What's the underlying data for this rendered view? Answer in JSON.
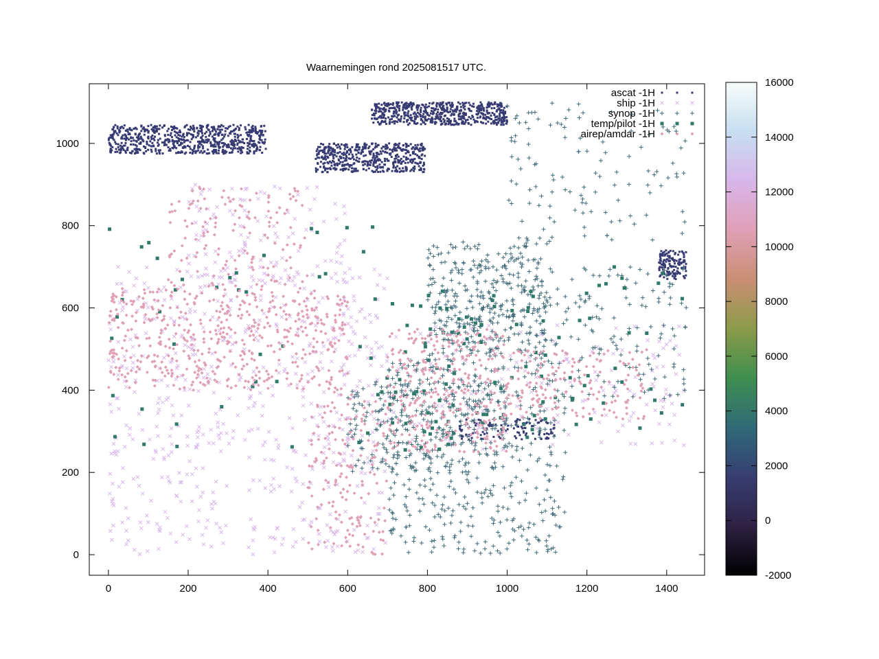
{
  "chart_data": {
    "type": "scatter",
    "title": "Waarnemingen rond 2025081517 UTC.",
    "xlabel": "",
    "ylabel": "",
    "xlim": [
      -48,
      1495
    ],
    "ylim": [
      -50,
      1145
    ],
    "xticks": [
      0,
      200,
      400,
      600,
      800,
      1000,
      1200,
      1400
    ],
    "yticks": [
      0,
      200,
      400,
      600,
      800,
      1000
    ],
    "grid": false,
    "legend_position": "top-right",
    "colorbar": {
      "min": -2000,
      "max": 16000,
      "ticks": [
        -2000,
        0,
        2000,
        4000,
        6000,
        8000,
        10000,
        12000,
        14000,
        16000
      ],
      "stops": [
        "#000000",
        "#2e2244",
        "#383e72",
        "#2f6a78",
        "#3f8f4f",
        "#8c9a49",
        "#c98f73",
        "#df9fb5",
        "#d8b6ea",
        "#c7def1",
        "#f7fdf9"
      ]
    },
    "series": [
      {
        "name": "ascat -1H",
        "marker": "dot",
        "color": "#363a72",
        "regions": [
          {
            "x": [
              0,
              395
            ],
            "y": [
              975,
              1045
            ],
            "n": 700
          },
          {
            "x": [
              520,
              795
            ],
            "y": [
              930,
              1000
            ],
            "n": 500
          },
          {
            "x": [
              660,
              1000
            ],
            "y": [
              1045,
              1100
            ],
            "n": 600
          },
          {
            "x": [
              1380,
              1450
            ],
            "y": [
              670,
              740
            ],
            "n": 140
          },
          {
            "x": [
              880,
              1120
            ],
            "y": [
              280,
              330
            ],
            "n": 120
          }
        ]
      },
      {
        "name": "ship -1H",
        "marker": "x",
        "color": "#d8b6ea",
        "regions": [
          {
            "x": [
              0,
              700
            ],
            "y": [
              250,
              700
            ],
            "n": 420
          },
          {
            "x": [
              0,
              300
            ],
            "y": [
              0,
              250
            ],
            "n": 90
          },
          {
            "x": [
              350,
              700
            ],
            "y": [
              0,
              250
            ],
            "n": 110
          },
          {
            "x": [
              200,
              600
            ],
            "y": [
              650,
              900
            ],
            "n": 120
          },
          {
            "x": [
              700,
              1450
            ],
            "y": [
              250,
              560
            ],
            "n": 160
          }
        ]
      },
      {
        "name": "synop -1H",
        "marker": "plus",
        "color": "#3f6a78",
        "regions": [
          {
            "x": [
              700,
              1150
            ],
            "y": [
              0,
              480
            ],
            "n": 420
          },
          {
            "x": [
              800,
              1100
            ],
            "y": [
              480,
              760
            ],
            "n": 380
          },
          {
            "x": [
              600,
              1000
            ],
            "y": [
              200,
              420
            ],
            "n": 260
          },
          {
            "x": [
              1100,
              1450
            ],
            "y": [
              380,
              700
            ],
            "n": 140
          },
          {
            "x": [
              1000,
              1450
            ],
            "y": [
              760,
              1100
            ],
            "n": 120
          }
        ]
      },
      {
        "name": "temp/pilot -1H",
        "marker": "square",
        "color": "#2f7a6a",
        "regions": [
          {
            "x": [
              650,
              1100
            ],
            "y": [
              250,
              650
            ],
            "n": 90
          },
          {
            "x": [
              0,
              700
            ],
            "y": [
              250,
              800
            ],
            "n": 40
          },
          {
            "x": [
              1100,
              1450
            ],
            "y": [
              300,
              700
            ],
            "n": 30
          }
        ]
      },
      {
        "name": "airep/amdar -1H",
        "marker": "diamond",
        "color": "#df9fb5",
        "regions": [
          {
            "x": [
              0,
              600
            ],
            "y": [
              400,
              650
            ],
            "n": 520
          },
          {
            "x": [
              700,
              1000
            ],
            "y": [
              250,
              550
            ],
            "n": 320
          },
          {
            "x": [
              1000,
              1350
            ],
            "y": [
              330,
              500
            ],
            "n": 160
          },
          {
            "x": [
              500,
              700
            ],
            "y": [
              0,
              400
            ],
            "n": 160
          },
          {
            "x": [
              150,
              500
            ],
            "y": [
              650,
              900
            ],
            "n": 140
          }
        ]
      }
    ]
  }
}
